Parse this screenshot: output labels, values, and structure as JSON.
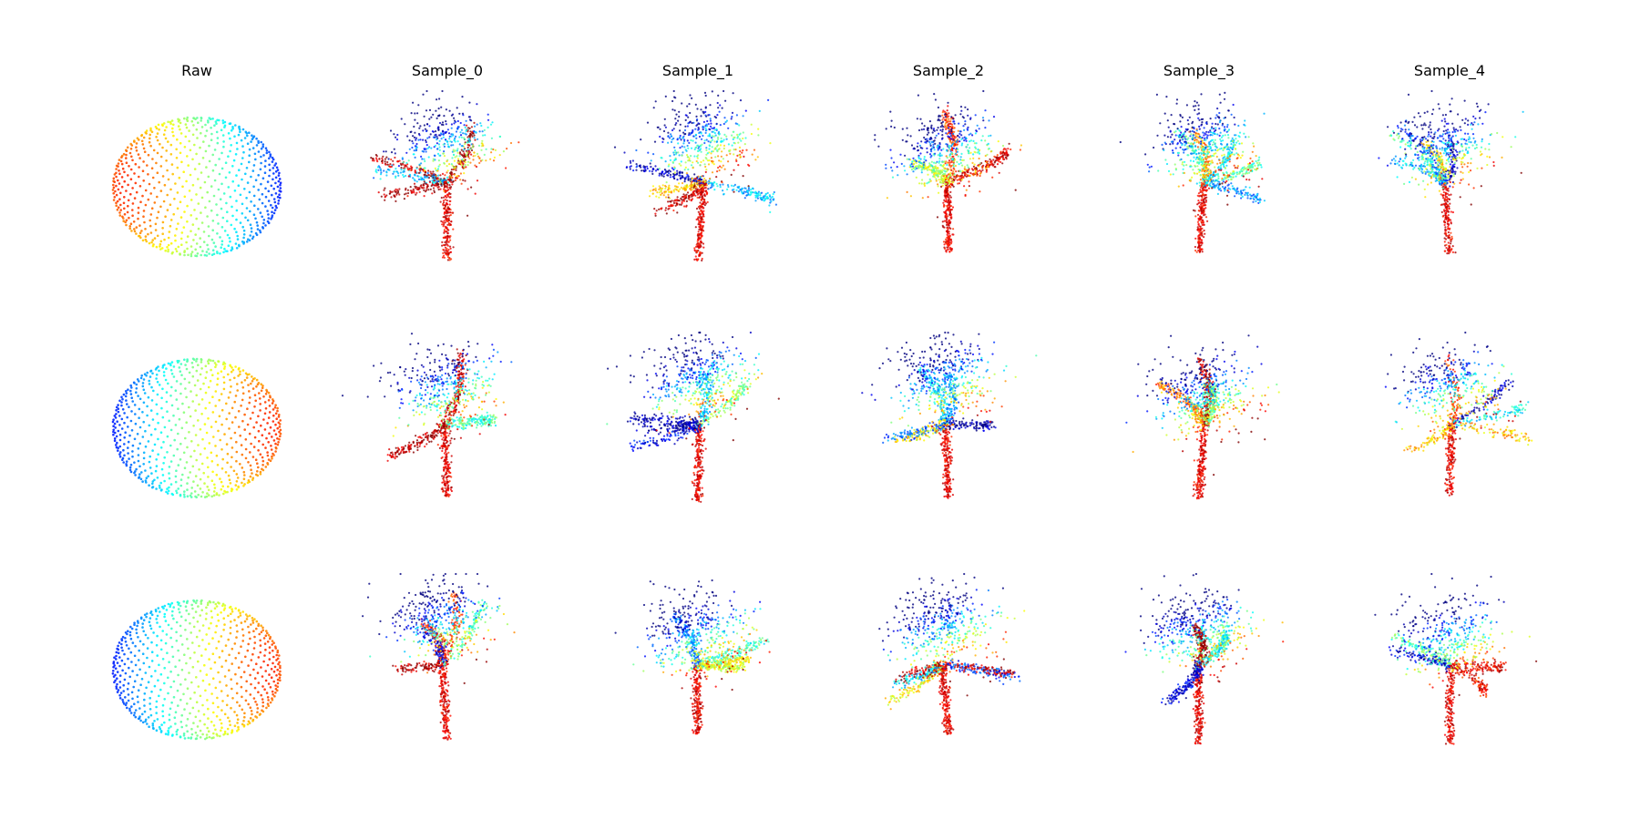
{
  "chart_data": {
    "type": "scatter",
    "grid": false,
    "axes_visible": false,
    "colormap": "jet",
    "columns": [
      "Raw",
      "Sample_0",
      "Sample_1",
      "Sample_2",
      "Sample_3",
      "Sample_4"
    ],
    "rows": 3,
    "panels": [
      {
        "row": 0,
        "col": 0,
        "shape": "sphere",
        "points": 1300,
        "color_axis": "x",
        "color_direction": -1
      },
      {
        "row": 0,
        "col": 1,
        "shape": "tree",
        "points": 1100
      },
      {
        "row": 0,
        "col": 2,
        "shape": "tree",
        "points": 1200
      },
      {
        "row": 0,
        "col": 3,
        "shape": "tree",
        "points": 1200
      },
      {
        "row": 0,
        "col": 4,
        "shape": "tree",
        "points": 1200
      },
      {
        "row": 0,
        "col": 5,
        "shape": "tree",
        "points": 1000
      },
      {
        "row": 1,
        "col": 0,
        "shape": "sphere",
        "points": 1300,
        "color_axis": "x",
        "color_direction": 1
      },
      {
        "row": 1,
        "col": 1,
        "shape": "tree",
        "points": 1100
      },
      {
        "row": 1,
        "col": 2,
        "shape": "tree",
        "points": 1200
      },
      {
        "row": 1,
        "col": 3,
        "shape": "tree",
        "points": 1200
      },
      {
        "row": 1,
        "col": 4,
        "shape": "tree",
        "points": 1200
      },
      {
        "row": 1,
        "col": 5,
        "shape": "tree",
        "points": 1000
      },
      {
        "row": 2,
        "col": 0,
        "shape": "sphere",
        "points": 1300,
        "color_axis": "x",
        "color_direction": 1
      },
      {
        "row": 2,
        "col": 1,
        "shape": "tree",
        "points": 1100
      },
      {
        "row": 2,
        "col": 2,
        "shape": "tree",
        "points": 1200
      },
      {
        "row": 2,
        "col": 3,
        "shape": "tree",
        "points": 1200
      },
      {
        "row": 2,
        "col": 4,
        "shape": "tree",
        "points": 1200
      },
      {
        "row": 2,
        "col": 5,
        "shape": "tree",
        "points": 1000
      }
    ]
  }
}
